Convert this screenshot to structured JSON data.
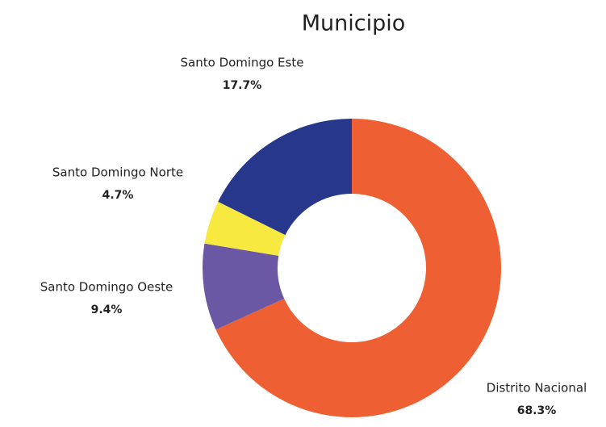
{
  "chart_data": {
    "type": "pie",
    "title": "Municipio",
    "categories": [
      "Distrito Nacional",
      "Santo Domingo Oeste",
      "Santo Domingo Norte",
      "Santo Domingo Este"
    ],
    "values": [
      68.3,
      9.4,
      4.7,
      17.7
    ],
    "value_labels": [
      "68.3%",
      "9.4%",
      "4.7%",
      "17.7%"
    ],
    "colors": [
      "#ee6033",
      "#6a58a4",
      "#f7e93f",
      "#27388c"
    ]
  }
}
